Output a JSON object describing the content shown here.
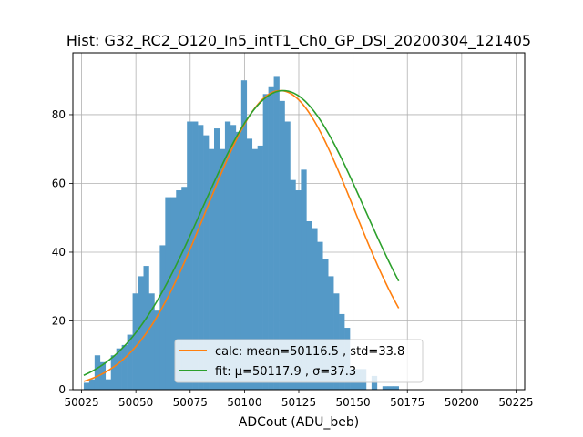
{
  "chart_data": {
    "type": "bar",
    "title": "Hist: G32_RC2_O120_In5_intT1_Ch0_GP_DSI_20200304_121405",
    "xlabel": "ADCout (ADU_beb)",
    "ylabel": "",
    "xlim": [
      50021,
      50229
    ],
    "ylim": [
      0,
      98
    ],
    "grid": true,
    "x_ticks": [
      50025,
      50050,
      50075,
      50100,
      50125,
      50150,
      50175,
      50200,
      50225
    ],
    "y_ticks": [
      0,
      20,
      40,
      60,
      80
    ],
    "bin_start": 50026,
    "bin_width": 2.5,
    "histogram": [
      2,
      3,
      10,
      8,
      3,
      10,
      12,
      13,
      16,
      28,
      33,
      36,
      28,
      23,
      42,
      56,
      56,
      58,
      59,
      78,
      78,
      77,
      74,
      70,
      76,
      70,
      78,
      77,
      75,
      90,
      73,
      70,
      71,
      86,
      88,
      91,
      84,
      78,
      61,
      58,
      64,
      49,
      47,
      43,
      38,
      33,
      28,
      22,
      18,
      6,
      6,
      6,
      0,
      4,
      0,
      1,
      1,
      1
    ],
    "bar_color": "#5499c7",
    "legend_position": "lower center",
    "series": [
      {
        "name": "calc: mean=50116.5 , std=33.8",
        "mean": 50116.5,
        "std": 33.8,
        "amplitude": 87,
        "color": "#ff7f0e"
      },
      {
        "name": "fit: μ=50117.9 , σ=37.3",
        "mean": 50117.9,
        "std": 37.3,
        "amplitude": 87,
        "color": "#2ca02c"
      }
    ]
  }
}
